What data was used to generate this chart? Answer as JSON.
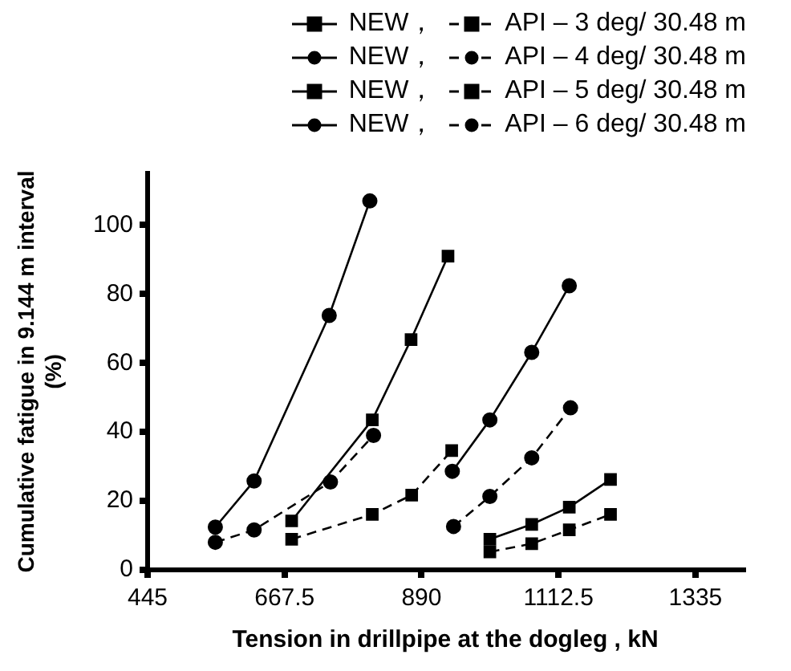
{
  "chart_data": {
    "type": "line",
    "xlabel": "Tension in drillpipe at the dogleg , kN",
    "ylabel": "Cumulative fatigue in 9.144 m interval (%)",
    "xlim": [
      445,
      1412
    ],
    "ylim": [
      0,
      115
    ],
    "xticks": [
      445,
      667.5,
      890,
      1112.5,
      1335
    ],
    "yticks": [
      0,
      20,
      40,
      60,
      80,
      100
    ],
    "grid": false,
    "legend": "top right",
    "series": [
      {
        "name": "NEW，",
        "color": "#000000",
        "marker": "square",
        "line_style": "solid",
        "x": [
          1001,
          1069,
          1130,
          1197
        ],
        "values": [
          8.9,
          13.2,
          18.2,
          26.2
        ]
      },
      {
        "name": "API – 3 deg/ 30.48 m",
        "color": "#000000",
        "marker": "square",
        "line_style": "dashed",
        "x": [
          1001,
          1069,
          1130,
          1197
        ],
        "values": [
          5.2,
          7.6,
          11.6,
          16.1
        ]
      },
      {
        "name": "NEW，",
        "color": "#000000",
        "marker": "circle",
        "line_style": "solid",
        "x": [
          940,
          1001,
          1069,
          1130
        ],
        "values": [
          28.6,
          43.5,
          63.1,
          82.4
        ]
      },
      {
        "name": "API – 4 deg/ 30.48 m",
        "color": "#000000",
        "marker": "circle",
        "line_style": "dashed",
        "x": [
          942,
          1001,
          1069,
          1132
        ],
        "values": [
          12.6,
          21.3,
          32.5,
          47
        ]
      },
      {
        "name": "NEW，",
        "color": "#000000",
        "marker": "square",
        "line_style": "solid",
        "x": [
          679,
          810,
          873,
          933
        ],
        "values": [
          14.2,
          43.5,
          66.8,
          91
        ]
      },
      {
        "name": "API – 5 deg/ 30.48 m",
        "color": "#000000",
        "marker": "square",
        "line_style": "dashed",
        "x": [
          679,
          810,
          874,
          939
        ],
        "values": [
          8.9,
          16.1,
          21.7,
          34.6
        ]
      },
      {
        "name": "NEW，",
        "color": "#000000",
        "marker": "circle",
        "line_style": "solid",
        "x": [
          555,
          618,
          740,
          806
        ],
        "values": [
          12.4,
          25.8,
          73.8,
          107
        ]
      },
      {
        "name": "API – 6 deg/ 30.48 m",
        "color": "#000000",
        "marker": "circle",
        "line_style": "dashed",
        "x": [
          555,
          618,
          742,
          812
        ],
        "values": [
          8,
          11.6,
          25.5,
          39
        ]
      }
    ]
  }
}
